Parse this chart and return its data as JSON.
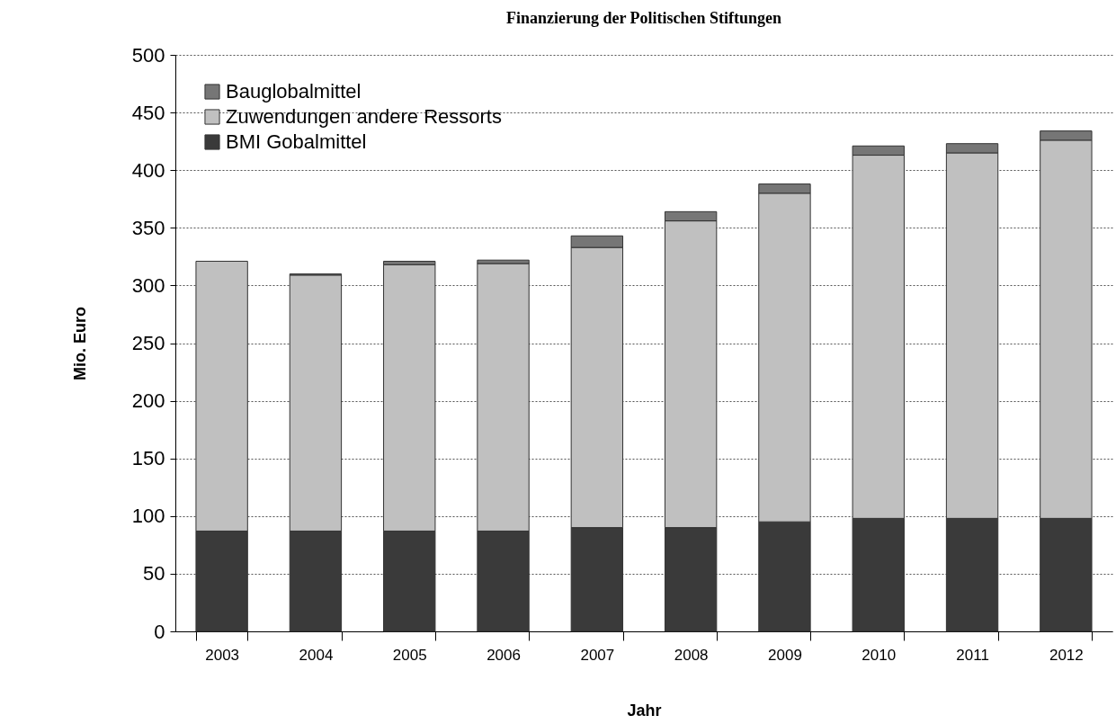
{
  "chart_data": {
    "type": "bar",
    "title": "Finanzierung der Politischen Stiftungen",
    "xlabel": "Jahr",
    "ylabel": "Mio. Euro",
    "categories": [
      "2003",
      "2004",
      "2005",
      "2006",
      "2007",
      "2008",
      "2009",
      "2010",
      "2011",
      "2012"
    ],
    "stacked": true,
    "series": [
      {
        "name": "BMI Gobalmittel",
        "color": "#3a3a3a",
        "values": [
          87,
          87,
          87,
          87,
          90,
          90,
          95,
          98,
          98,
          98
        ]
      },
      {
        "name": "Zuwendungen andere Ressorts",
        "color": "#c0c0c0",
        "values": [
          234,
          222,
          231,
          232,
          243,
          266,
          285,
          315,
          317,
          328
        ]
      },
      {
        "name": "Bauglobalmittel",
        "color": "#767676",
        "values": [
          null,
          1,
          3,
          3,
          10,
          8,
          8,
          8,
          8,
          8
        ]
      }
    ],
    "ylim": [
      0,
      500
    ],
    "yticks": [
      0,
      50,
      100,
      150,
      200,
      250,
      300,
      350,
      400,
      450,
      500
    ],
    "grid": "y",
    "legend": "top left"
  }
}
